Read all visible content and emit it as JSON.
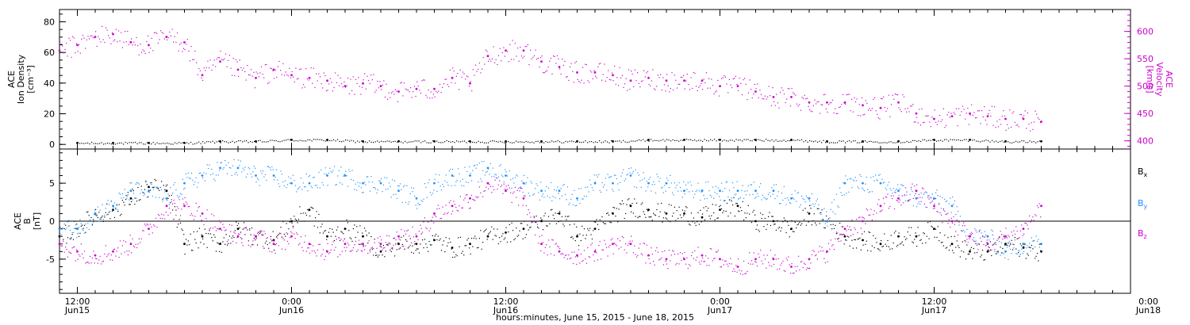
{
  "chart_data": [
    {
      "type": "scatter",
      "panel": "plasma",
      "x_range_hours": [
        -1,
        59
      ],
      "left_axis": {
        "label_lines": [
          "ACE",
          "Ion Density",
          "[cm⁻³]"
        ],
        "ylim": [
          -3,
          88
        ],
        "ticks": [
          0,
          20,
          40,
          60,
          80
        ],
        "color": "#000000"
      },
      "right_axis": {
        "label_lines": [
          "ACE",
          "Velocity",
          "[km/s]"
        ],
        "ylim": [
          385,
          640
        ],
        "ticks": [
          400,
          450,
          500,
          550,
          600
        ],
        "color": "#cc00cc"
      },
      "series": [
        {
          "key": "density",
          "axis": "left",
          "color": "#000000",
          "x": [
            0,
            2,
            4,
            6,
            8,
            10,
            12,
            14,
            16,
            18,
            20,
            22,
            24,
            26,
            28,
            30,
            32,
            34,
            36,
            38,
            40,
            42,
            44,
            46,
            48,
            50,
            52,
            54
          ],
          "y": [
            1,
            1,
            1,
            1,
            2,
            2,
            3,
            3,
            2,
            2,
            2,
            2,
            2,
            2,
            2,
            2,
            3,
            3,
            3,
            3,
            3,
            2,
            2,
            2,
            3,
            3,
            2,
            2
          ]
        },
        {
          "key": "velocity",
          "axis": "right",
          "color": "#cc00cc",
          "x": [
            -1,
            0,
            1,
            2,
            3,
            4,
            5,
            6,
            7,
            8,
            9,
            10,
            11,
            12,
            13,
            14,
            15,
            16,
            17,
            18,
            19,
            20,
            21,
            22,
            23,
            24,
            25,
            26,
            27,
            28,
            29,
            30,
            31,
            32,
            33,
            34,
            35,
            36,
            37,
            38,
            39,
            40,
            41,
            42,
            43,
            44,
            45,
            46,
            47,
            48,
            49,
            50,
            51,
            52,
            53,
            54
          ],
          "y": [
            565,
            575,
            590,
            595,
            580,
            575,
            590,
            580,
            520,
            545,
            530,
            515,
            530,
            520,
            515,
            510,
            500,
            505,
            500,
            490,
            495,
            495,
            515,
            505,
            555,
            565,
            565,
            545,
            535,
            525,
            525,
            520,
            510,
            515,
            510,
            510,
            510,
            500,
            500,
            490,
            480,
            480,
            470,
            470,
            470,
            465,
            460,
            470,
            450,
            440,
            445,
            450,
            445,
            440,
            440,
            435
          ]
        }
      ]
    },
    {
      "type": "scatter",
      "panel": "magnetic-field",
      "x_range_hours": [
        -1,
        59
      ],
      "left_axis": {
        "label_lines": [
          "ACE",
          "B",
          "[nT]"
        ],
        "ylim": [
          -9.5,
          9.5
        ],
        "ticks": [
          -5,
          0,
          5
        ],
        "zero_line": true
      },
      "legend": {
        "placement": "right",
        "entries": [
          "Bx",
          "By",
          "Bz"
        ]
      },
      "series": [
        {
          "name": "Bx",
          "color": "#000000",
          "x": [
            -1,
            0,
            1,
            2,
            3,
            4,
            5,
            6,
            7,
            8,
            9,
            10,
            11,
            12,
            13,
            14,
            15,
            16,
            17,
            18,
            19,
            20,
            21,
            22,
            23,
            24,
            25,
            26,
            27,
            28,
            29,
            30,
            31,
            32,
            33,
            34,
            35,
            36,
            37,
            38,
            39,
            40,
            41,
            42,
            43,
            44,
            45,
            46,
            47,
            48,
            49,
            50,
            51,
            52,
            53,
            54
          ],
          "y": [
            -2,
            -1,
            1,
            1.5,
            3,
            4.5,
            4,
            -3,
            -2,
            -3,
            -1,
            -2,
            -2.5,
            0,
            1.5,
            -2,
            -1,
            -2,
            -4,
            -3,
            -3,
            -2.5,
            -3.5,
            -3,
            -2,
            -1.5,
            -1,
            0,
            1,
            -2,
            -1,
            1,
            2,
            1.5,
            1,
            1,
            0.5,
            1.5,
            2,
            0,
            0,
            -1,
            1,
            0,
            -2,
            -2.5,
            -3,
            -2,
            -2,
            -1,
            -3,
            -4,
            -4,
            -3,
            -3.5,
            -4
          ]
        },
        {
          "name": "By",
          "color": "#1e90ff",
          "x": [
            -1,
            0,
            1,
            2,
            3,
            4,
            5,
            6,
            7,
            8,
            9,
            10,
            11,
            12,
            13,
            14,
            15,
            16,
            17,
            18,
            19,
            20,
            21,
            22,
            23,
            24,
            25,
            26,
            27,
            28,
            29,
            30,
            31,
            32,
            33,
            34,
            35,
            36,
            37,
            38,
            39,
            40,
            41,
            42,
            43,
            44,
            45,
            46,
            47,
            48,
            49,
            50,
            51,
            52,
            53,
            54
          ],
          "y": [
            -1,
            -1,
            1,
            2,
            4,
            4,
            3,
            5,
            6,
            7,
            7,
            6,
            6,
            5,
            5,
            6,
            6,
            5,
            5,
            4,
            3,
            5,
            6,
            6,
            7,
            6,
            5,
            4,
            4,
            3,
            5,
            5,
            6,
            5,
            5,
            4,
            4,
            4,
            4,
            4,
            4,
            3,
            3,
            0,
            5,
            5,
            5,
            4,
            3,
            3,
            2,
            -2,
            -2,
            -4,
            -3,
            -3
          ]
        },
        {
          "name": "Bz",
          "color": "#cc00cc",
          "x": [
            -1,
            0,
            1,
            2,
            3,
            4,
            5,
            6,
            7,
            8,
            9,
            10,
            11,
            12,
            13,
            14,
            15,
            16,
            17,
            18,
            19,
            20,
            21,
            22,
            23,
            24,
            25,
            26,
            27,
            28,
            29,
            30,
            31,
            32,
            33,
            34,
            35,
            36,
            37,
            38,
            39,
            40,
            41,
            42,
            43,
            44,
            45,
            46,
            47,
            48,
            49,
            50,
            51,
            52,
            53,
            54
          ],
          "y": [
            -3,
            -4,
            -4.5,
            -4,
            -3,
            -1,
            2,
            2,
            1,
            -1,
            -2,
            -2,
            -3,
            -2,
            -3,
            -4,
            -3,
            -3,
            -3,
            -2,
            -2,
            1,
            2,
            3,
            5,
            4,
            3,
            -3,
            -4,
            -4.5,
            -4,
            -3,
            -3,
            -4.5,
            -5,
            -5,
            -4.5,
            -5,
            -6,
            -5,
            -5,
            -6,
            -5,
            -4,
            -1,
            0,
            2,
            3,
            4,
            2,
            0,
            -2,
            -3,
            -2,
            -1,
            2
          ]
        }
      ]
    }
  ],
  "x_axis": {
    "title": "hours:minutes, June 15, 2015 - June 18, 2015",
    "major_ticks": [
      {
        "hour": 0,
        "time": "12:00",
        "date": "Jun15"
      },
      {
        "hour": 12,
        "time": "0:00",
        "date": "Jun16"
      },
      {
        "hour": 24,
        "time": "12:00",
        "date": "Jun16"
      },
      {
        "hour": 36,
        "time": "0:00",
        "date": "Jun17"
      },
      {
        "hour": 48,
        "time": "12:00",
        "date": "Jun17"
      },
      {
        "hour": 60,
        "time": "0:00",
        "date": "Jun18"
      }
    ]
  }
}
